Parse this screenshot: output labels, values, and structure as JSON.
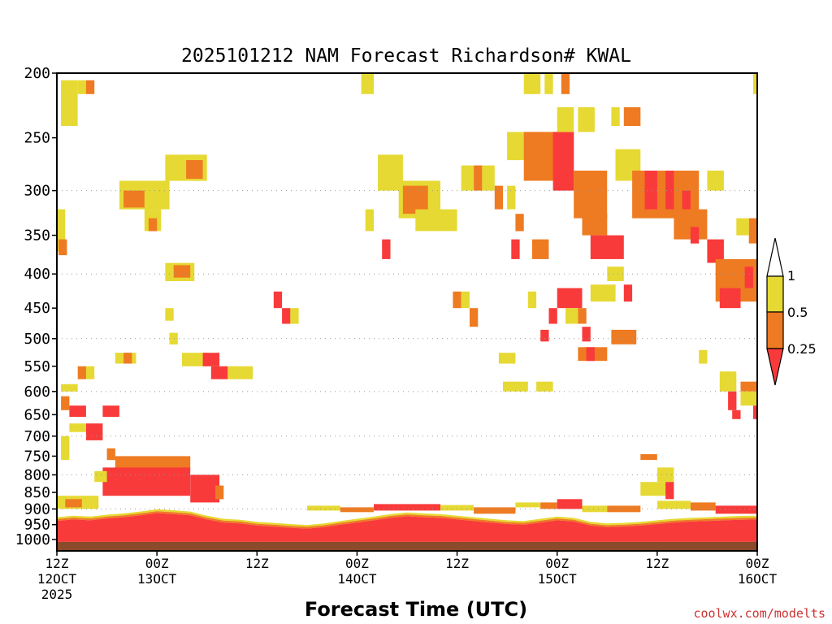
{
  "chart_data": {
    "type": "heatmap",
    "title": "2025101212 NAM Forecast Richardson# KWAL",
    "xlabel": "Forecast Time (UTC)",
    "ylabel": "",
    "y_axis": {
      "scale": "log-pressure",
      "range_mb": [
        200,
        1040
      ],
      "ticks": [
        "200",
        "250",
        "300",
        "350",
        "400",
        "450",
        "500",
        "550",
        "600",
        "650",
        "700",
        "750",
        "800",
        "850",
        "900",
        "950",
        "1000"
      ],
      "gridlines_mb": [
        300,
        400,
        500,
        600,
        700,
        800,
        900
      ]
    },
    "x_axis": {
      "range_hours": [
        0,
        84
      ],
      "ticks": [
        {
          "hour": 0,
          "line1": "12Z",
          "line2": "12OCT",
          "line3": "2025"
        },
        {
          "hour": 12,
          "line1": "00Z",
          "line2": "13OCT",
          "line3": ""
        },
        {
          "hour": 24,
          "line1": "12Z",
          "line2": "",
          "line3": ""
        },
        {
          "hour": 36,
          "line1": "00Z",
          "line2": "14OCT",
          "line3": ""
        },
        {
          "hour": 48,
          "line1": "12Z",
          "line2": "",
          "line3": ""
        },
        {
          "hour": 60,
          "line1": "00Z",
          "line2": "15OCT",
          "line3": ""
        },
        {
          "hour": 72,
          "line1": "12Z",
          "line2": "",
          "line3": ""
        },
        {
          "hour": 84,
          "line1": "00Z",
          "line2": "16OCT",
          "line3": ""
        }
      ]
    },
    "legend": {
      "placement": "right",
      "thresholds": [
        "1",
        "0.5",
        "0.25"
      ],
      "classes": [
        {
          "name": "0.5-1",
          "color": "#e6d933"
        },
        {
          "name": "0.25-0.5",
          "color": "#ee7b22"
        },
        {
          "name": "<0.25",
          "color": "#f93a3a"
        }
      ]
    },
    "colors": {
      "yellow": "#e6d933",
      "orange": "#ee7b22",
      "red": "#f93a3a",
      "ground": "#8b4a2a"
    },
    "ground_level_mb": 1008,
    "boundary_layer": [
      {
        "h": 0,
        "top": 930
      },
      {
        "h": 2,
        "top": 925
      },
      {
        "h": 4,
        "top": 928
      },
      {
        "h": 6,
        "top": 922
      },
      {
        "h": 8,
        "top": 918
      },
      {
        "h": 10,
        "top": 912
      },
      {
        "h": 12,
        "top": 905
      },
      {
        "h": 14,
        "top": 908
      },
      {
        "h": 16,
        "top": 912
      },
      {
        "h": 18,
        "top": 925
      },
      {
        "h": 20,
        "top": 935
      },
      {
        "h": 22,
        "top": 938
      },
      {
        "h": 24,
        "top": 945
      },
      {
        "h": 26,
        "top": 948
      },
      {
        "h": 28,
        "top": 952
      },
      {
        "h": 30,
        "top": 955
      },
      {
        "h": 32,
        "top": 950
      },
      {
        "h": 34,
        "top": 942
      },
      {
        "h": 36,
        "top": 935
      },
      {
        "h": 38,
        "top": 928
      },
      {
        "h": 40,
        "top": 920
      },
      {
        "h": 42,
        "top": 915
      },
      {
        "h": 44,
        "top": 918
      },
      {
        "h": 46,
        "top": 920
      },
      {
        "h": 48,
        "top": 925
      },
      {
        "h": 50,
        "top": 930
      },
      {
        "h": 52,
        "top": 935
      },
      {
        "h": 54,
        "top": 940
      },
      {
        "h": 56,
        "top": 942
      },
      {
        "h": 58,
        "top": 935
      },
      {
        "h": 60,
        "top": 928
      },
      {
        "h": 62,
        "top": 932
      },
      {
        "h": 64,
        "top": 945
      },
      {
        "h": 66,
        "top": 950
      },
      {
        "h": 68,
        "top": 948
      },
      {
        "h": 70,
        "top": 945
      },
      {
        "h": 72,
        "top": 940
      },
      {
        "h": 74,
        "top": 935
      },
      {
        "h": 76,
        "top": 932
      },
      {
        "h": 78,
        "top": 930
      },
      {
        "h": 80,
        "top": 928
      },
      {
        "h": 82,
        "top": 926
      },
      {
        "h": 84,
        "top": 925
      }
    ],
    "patches": [
      {
        "h0": 0.5,
        "h1": 2.5,
        "p0": 205,
        "p1": 240,
        "v": "y"
      },
      {
        "h0": 2.5,
        "h1": 3.5,
        "p0": 205,
        "p1": 215,
        "v": "y"
      },
      {
        "h0": 3.5,
        "h1": 4.5,
        "p0": 205,
        "p1": 215,
        "v": "o"
      },
      {
        "h0": 0,
        "h1": 1,
        "p0": 320,
        "p1": 370,
        "v": "y"
      },
      {
        "h0": 0.2,
        "h1": 1.2,
        "p0": 355,
        "p1": 375,
        "v": "o"
      },
      {
        "h0": 7.5,
        "h1": 13.5,
        "p0": 290,
        "p1": 320,
        "v": "y"
      },
      {
        "h0": 8,
        "h1": 10.5,
        "p0": 300,
        "p1": 318,
        "v": "o"
      },
      {
        "h0": 10.5,
        "h1": 12.5,
        "p0": 320,
        "p1": 345,
        "v": "y"
      },
      {
        "h0": 11,
        "h1": 12,
        "p0": 330,
        "p1": 345,
        "v": "o"
      },
      {
        "h0": 13,
        "h1": 18,
        "p0": 265,
        "p1": 290,
        "v": "y"
      },
      {
        "h0": 15.5,
        "h1": 17.5,
        "p0": 270,
        "p1": 288,
        "v": "o"
      },
      {
        "h0": 13,
        "h1": 16.5,
        "p0": 385,
        "p1": 410,
        "v": "y"
      },
      {
        "h0": 14,
        "h1": 16,
        "p0": 388,
        "p1": 405,
        "v": "o"
      },
      {
        "h0": 7,
        "h1": 9.5,
        "p0": 525,
        "p1": 545,
        "v": "y"
      },
      {
        "h0": 8,
        "h1": 9,
        "p0": 525,
        "p1": 545,
        "v": "o"
      },
      {
        "h0": 15,
        "h1": 18,
        "p0": 525,
        "p1": 550,
        "v": "y"
      },
      {
        "h0": 17.5,
        "h1": 19.5,
        "p0": 525,
        "p1": 550,
        "v": "r"
      },
      {
        "h0": 18.5,
        "h1": 20.5,
        "p0": 550,
        "p1": 575,
        "v": "r"
      },
      {
        "h0": 20.5,
        "h1": 23.5,
        "p0": 550,
        "p1": 575,
        "v": "y"
      },
      {
        "h0": 2.5,
        "h1": 3.5,
        "p0": 550,
        "p1": 575,
        "v": "o"
      },
      {
        "h0": 3.5,
        "h1": 4.5,
        "p0": 550,
        "p1": 575,
        "v": "y"
      },
      {
        "h0": 0.5,
        "h1": 2.5,
        "p0": 585,
        "p1": 600,
        "v": "y"
      },
      {
        "h0": 1.5,
        "h1": 3.5,
        "p0": 630,
        "p1": 655,
        "v": "r"
      },
      {
        "h0": 0.5,
        "h1": 1.5,
        "p0": 610,
        "p1": 640,
        "v": "o"
      },
      {
        "h0": 5.5,
        "h1": 7.5,
        "p0": 630,
        "p1": 655,
        "v": "r"
      },
      {
        "h0": 1.5,
        "h1": 3.5,
        "p0": 670,
        "p1": 690,
        "v": "y"
      },
      {
        "h0": 3.5,
        "h1": 5.5,
        "p0": 670,
        "p1": 710,
        "v": "r"
      },
      {
        "h0": 0.5,
        "h1": 1.5,
        "p0": 700,
        "p1": 760,
        "v": "y"
      },
      {
        "h0": 6,
        "h1": 7,
        "p0": 730,
        "p1": 760,
        "v": "o"
      },
      {
        "h0": 7,
        "h1": 16,
        "p0": 750,
        "p1": 790,
        "v": "o"
      },
      {
        "h0": 5.5,
        "h1": 16,
        "p0": 780,
        "p1": 860,
        "v": "r"
      },
      {
        "h0": 16,
        "h1": 19.5,
        "p0": 800,
        "p1": 880,
        "v": "r"
      },
      {
        "h0": 19,
        "h1": 20,
        "p0": 830,
        "p1": 870,
        "v": "o"
      },
      {
        "h0": 4.5,
        "h1": 6,
        "p0": 790,
        "p1": 820,
        "v": "y"
      },
      {
        "h0": 0,
        "h1": 5,
        "p0": 860,
        "p1": 900,
        "v": "y"
      },
      {
        "h0": 1,
        "h1": 3,
        "p0": 870,
        "p1": 895,
        "v": "o"
      },
      {
        "h0": 36.5,
        "h1": 38,
        "p0": 200,
        "p1": 215,
        "v": "y"
      },
      {
        "h0": 38.5,
        "h1": 41.5,
        "p0": 265,
        "p1": 300,
        "v": "y"
      },
      {
        "h0": 41,
        "h1": 46,
        "p0": 290,
        "p1": 330,
        "v": "y"
      },
      {
        "h0": 41.5,
        "h1": 44.5,
        "p0": 295,
        "p1": 325,
        "v": "o"
      },
      {
        "h0": 43,
        "h1": 48,
        "p0": 320,
        "p1": 345,
        "v": "y"
      },
      {
        "h0": 37,
        "h1": 38,
        "p0": 320,
        "p1": 345,
        "v": "y"
      },
      {
        "h0": 39,
        "h1": 40,
        "p0": 355,
        "p1": 380,
        "v": "r"
      },
      {
        "h0": 26,
        "h1": 27,
        "p0": 425,
        "p1": 450,
        "v": "r"
      },
      {
        "h0": 27,
        "h1": 28,
        "p0": 450,
        "p1": 475,
        "v": "r"
      },
      {
        "h0": 28,
        "h1": 29,
        "p0": 450,
        "p1": 475,
        "v": "y"
      },
      {
        "h0": 13,
        "h1": 14,
        "p0": 450,
        "p1": 470,
        "v": "y"
      },
      {
        "h0": 13.5,
        "h1": 14.5,
        "p0": 490,
        "p1": 510,
        "v": "y"
      },
      {
        "h0": 48.5,
        "h1": 50,
        "p0": 275,
        "p1": 300,
        "v": "y"
      },
      {
        "h0": 50,
        "h1": 51,
        "p0": 275,
        "p1": 300,
        "v": "o"
      },
      {
        "h0": 51,
        "h1": 52.5,
        "p0": 275,
        "p1": 300,
        "v": "y"
      },
      {
        "h0": 54,
        "h1": 59,
        "p0": 245,
        "p1": 270,
        "v": "y"
      },
      {
        "h0": 56,
        "h1": 61,
        "p0": 245,
        "p1": 290,
        "v": "o"
      },
      {
        "h0": 59.5,
        "h1": 62,
        "p0": 245,
        "p1": 300,
        "v": "r"
      },
      {
        "h0": 62,
        "h1": 66,
        "p0": 280,
        "p1": 330,
        "v": "o"
      },
      {
        "h0": 56,
        "h1": 58,
        "p0": 200,
        "p1": 215,
        "v": "y"
      },
      {
        "h0": 58.5,
        "h1": 59.5,
        "p0": 200,
        "p1": 215,
        "v": "y"
      },
      {
        "h0": 60.5,
        "h1": 61.5,
        "p0": 200,
        "p1": 215,
        "v": "o"
      },
      {
        "h0": 60,
        "h1": 62,
        "p0": 225,
        "p1": 245,
        "v": "y"
      },
      {
        "h0": 62.5,
        "h1": 64.5,
        "p0": 225,
        "p1": 245,
        "v": "y"
      },
      {
        "h0": 52.5,
        "h1": 53.5,
        "p0": 295,
        "p1": 320,
        "v": "o"
      },
      {
        "h0": 54,
        "h1": 55,
        "p0": 295,
        "p1": 320,
        "v": "y"
      },
      {
        "h0": 55,
        "h1": 56,
        "p0": 325,
        "p1": 345,
        "v": "o"
      },
      {
        "h0": 57,
        "h1": 59,
        "p0": 355,
        "p1": 380,
        "v": "o"
      },
      {
        "h0": 54.5,
        "h1": 55.5,
        "p0": 355,
        "p1": 380,
        "v": "r"
      },
      {
        "h0": 63,
        "h1": 66,
        "p0": 325,
        "p1": 350,
        "v": "o"
      },
      {
        "h0": 64,
        "h1": 68,
        "p0": 350,
        "p1": 380,
        "v": "r"
      },
      {
        "h0": 67,
        "h1": 70,
        "p0": 260,
        "p1": 290,
        "v": "y"
      },
      {
        "h0": 68,
        "h1": 70,
        "p0": 225,
        "p1": 240,
        "v": "o"
      },
      {
        "h0": 66.5,
        "h1": 67.5,
        "p0": 225,
        "p1": 240,
        "v": "y"
      },
      {
        "h0": 69,
        "h1": 77,
        "p0": 280,
        "p1": 330,
        "v": "o"
      },
      {
        "h0": 70.5,
        "h1": 72,
        "p0": 280,
        "p1": 320,
        "v": "r"
      },
      {
        "h0": 73,
        "h1": 74,
        "p0": 280,
        "p1": 320,
        "v": "r"
      },
      {
        "h0": 75,
        "h1": 76,
        "p0": 300,
        "p1": 330,
        "v": "r"
      },
      {
        "h0": 74,
        "h1": 78,
        "p0": 320,
        "p1": 355,
        "v": "o"
      },
      {
        "h0": 76,
        "h1": 77,
        "p0": 340,
        "p1": 360,
        "v": "r"
      },
      {
        "h0": 78,
        "h1": 80,
        "p0": 280,
        "p1": 300,
        "v": "y"
      },
      {
        "h0": 78,
        "h1": 80,
        "p0": 355,
        "p1": 385,
        "v": "r"
      },
      {
        "h0": 79,
        "h1": 84,
        "p0": 380,
        "p1": 440,
        "v": "o"
      },
      {
        "h0": 79.5,
        "h1": 82,
        "p0": 420,
        "p1": 450,
        "v": "r"
      },
      {
        "h0": 82.5,
        "h1": 83.5,
        "p0": 390,
        "p1": 420,
        "v": "r"
      },
      {
        "h0": 83,
        "h1": 84,
        "p0": 330,
        "p1": 360,
        "v": "o"
      },
      {
        "h0": 81.5,
        "h1": 83,
        "p0": 330,
        "p1": 350,
        "v": "y"
      },
      {
        "h0": 83.5,
        "h1": 84,
        "p0": 200,
        "p1": 215,
        "v": "y"
      },
      {
        "h0": 66,
        "h1": 68,
        "p0": 390,
        "p1": 410,
        "v": "y"
      },
      {
        "h0": 64,
        "h1": 67,
        "p0": 415,
        "p1": 440,
        "v": "y"
      },
      {
        "h0": 68,
        "h1": 69,
        "p0": 415,
        "p1": 440,
        "v": "r"
      },
      {
        "h0": 60,
        "h1": 63,
        "p0": 420,
        "p1": 450,
        "v": "r"
      },
      {
        "h0": 59,
        "h1": 60,
        "p0": 450,
        "p1": 475,
        "v": "r"
      },
      {
        "h0": 61,
        "h1": 62.5,
        "p0": 450,
        "p1": 475,
        "v": "y"
      },
      {
        "h0": 62.5,
        "h1": 63.5,
        "p0": 450,
        "p1": 475,
        "v": "o"
      },
      {
        "h0": 58,
        "h1": 59,
        "p0": 485,
        "p1": 505,
        "v": "r"
      },
      {
        "h0": 63,
        "h1": 64,
        "p0": 480,
        "p1": 505,
        "v": "r"
      },
      {
        "h0": 66.5,
        "h1": 69.5,
        "p0": 485,
        "p1": 510,
        "v": "o"
      },
      {
        "h0": 62.5,
        "h1": 66,
        "p0": 515,
        "p1": 540,
        "v": "o"
      },
      {
        "h0": 63.5,
        "h1": 64.5,
        "p0": 515,
        "p1": 540,
        "v": "r"
      },
      {
        "h0": 53,
        "h1": 55,
        "p0": 525,
        "p1": 545,
        "v": "y"
      },
      {
        "h0": 53.5,
        "h1": 56.5,
        "p0": 580,
        "p1": 600,
        "v": "y"
      },
      {
        "h0": 57.5,
        "h1": 59.5,
        "p0": 580,
        "p1": 600,
        "v": "y"
      },
      {
        "h0": 47.5,
        "h1": 48.5,
        "p0": 425,
        "p1": 450,
        "v": "o"
      },
      {
        "h0": 48.5,
        "h1": 49.5,
        "p0": 425,
        "p1": 450,
        "v": "y"
      },
      {
        "h0": 49.5,
        "h1": 50.5,
        "p0": 450,
        "p1": 480,
        "v": "o"
      },
      {
        "h0": 56.5,
        "h1": 57.5,
        "p0": 425,
        "p1": 450,
        "v": "y"
      },
      {
        "h0": 79.5,
        "h1": 81.5,
        "p0": 560,
        "p1": 600,
        "v": "y"
      },
      {
        "h0": 80.5,
        "h1": 81.5,
        "p0": 600,
        "p1": 640,
        "v": "r"
      },
      {
        "h0": 81,
        "h1": 82,
        "p0": 640,
        "p1": 660,
        "v": "r"
      },
      {
        "h0": 82,
        "h1": 84,
        "p0": 580,
        "p1": 600,
        "v": "o"
      },
      {
        "h0": 82,
        "h1": 84,
        "p0": 600,
        "p1": 630,
        "v": "y"
      },
      {
        "h0": 83.5,
        "h1": 84,
        "p0": 630,
        "p1": 660,
        "v": "r"
      },
      {
        "h0": 77,
        "h1": 78,
        "p0": 520,
        "p1": 545,
        "v": "y"
      },
      {
        "h0": 72,
        "h1": 74,
        "p0": 780,
        "p1": 820,
        "v": "y"
      },
      {
        "h0": 70,
        "h1": 72,
        "p0": 745,
        "p1": 760,
        "v": "o"
      },
      {
        "h0": 70,
        "h1": 73,
        "p0": 820,
        "p1": 860,
        "v": "y"
      },
      {
        "h0": 73,
        "h1": 74,
        "p0": 820,
        "p1": 870,
        "v": "r"
      },
      {
        "h0": 55,
        "h1": 58,
        "p0": 880,
        "p1": 895,
        "v": "y"
      },
      {
        "h0": 58,
        "h1": 60,
        "p0": 880,
        "p1": 900,
        "v": "o"
      },
      {
        "h0": 60,
        "h1": 63,
        "p0": 870,
        "p1": 900,
        "v": "r"
      },
      {
        "h0": 63,
        "h1": 66,
        "p0": 890,
        "p1": 910,
        "v": "y"
      },
      {
        "h0": 66,
        "h1": 70,
        "p0": 890,
        "p1": 910,
        "v": "o"
      },
      {
        "h0": 72,
        "h1": 76,
        "p0": 875,
        "p1": 900,
        "v": "y"
      },
      {
        "h0": 76,
        "h1": 79,
        "p0": 880,
        "p1": 905,
        "v": "o"
      },
      {
        "h0": 79,
        "h1": 84,
        "p0": 890,
        "p1": 915,
        "v": "r"
      },
      {
        "h0": 30,
        "h1": 34,
        "p0": 890,
        "p1": 905,
        "v": "y"
      },
      {
        "h0": 34,
        "h1": 38,
        "p0": 895,
        "p1": 910,
        "v": "o"
      },
      {
        "h0": 38,
        "h1": 46,
        "p0": 885,
        "p1": 905,
        "v": "r"
      },
      {
        "h0": 46,
        "h1": 50,
        "p0": 888,
        "p1": 905,
        "v": "y"
      },
      {
        "h0": 50,
        "h1": 55,
        "p0": 895,
        "p1": 915,
        "v": "o"
      }
    ]
  },
  "credit": "coolwx.com/modelts"
}
